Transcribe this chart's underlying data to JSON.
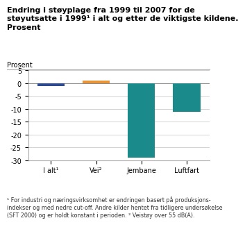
{
  "title_line1": "Endring i støyplage fra 1999 til 2007 for de",
  "title_line2": "støyutsatte i 1999¹ i alt og etter de viktigste kildene.",
  "title_line3": "Prosent",
  "ylabel_top": "Prosent",
  "categories": [
    "I alt¹",
    "Vei²",
    "Jembane",
    "Luftfart"
  ],
  "values": [
    -1,
    1,
    -29,
    -11
  ],
  "bar_colors": [
    "#2e4a8e",
    "#e8953a",
    "#1a8a8a",
    "#1a8a8a"
  ],
  "ylim": [
    -30,
    5
  ],
  "yticks": [
    5,
    0,
    -5,
    -10,
    -15,
    -20,
    -25,
    -30
  ],
  "footnote": "¹ For industri og næringsvirksomhet er endringen basert på produksjons-\nindekser og med nedre cut-off. Andre kilder hentet fra tidligere undersøkelse\n(SFT 2000) og er holdt konstant i perioden. ² Veistøy over 55 dB(A).",
  "grid_color": "#cccccc",
  "background_color": "#ffffff",
  "title_fontsize": 8.0,
  "axis_fontsize": 7.0,
  "footnote_fontsize": 5.8,
  "ylabel_fontsize": 7.0
}
